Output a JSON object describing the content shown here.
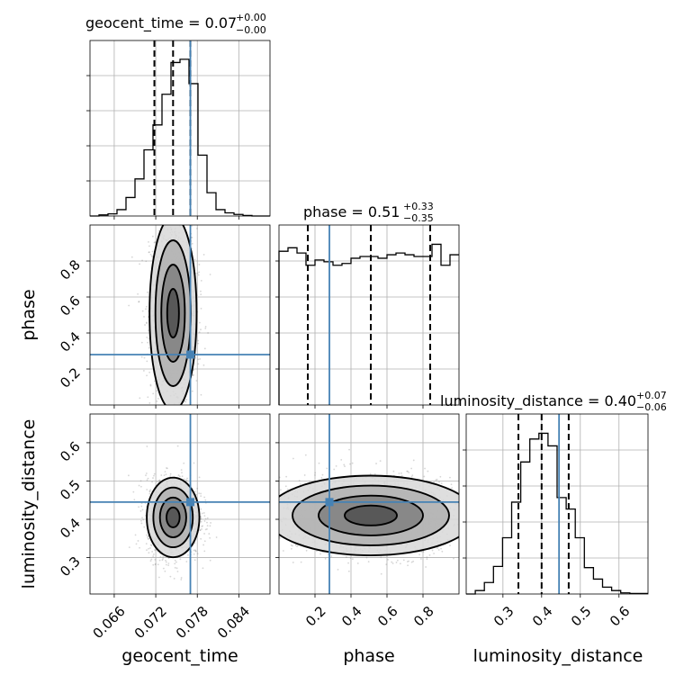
{
  "chart_data": {
    "type": "corner",
    "parameters": [
      "geocent_time",
      "phase",
      "luminosity_distance"
    ],
    "truths": {
      "geocent_time": 0.077,
      "phase": 0.28,
      "luminosity_distance": 0.445
    },
    "grid": true,
    "titles": {
      "geocent_time": {
        "label": "geocent_time = 0.07",
        "upper": "+0.00",
        "lower": "−0.00"
      },
      "phase": {
        "label": "phase = 0.51",
        "upper": "+0.33",
        "lower": "−0.35"
      },
      "luminosity_distance": {
        "label": "luminosity_distance = 0.40",
        "upper": "+0.07",
        "lower": "−0.06"
      }
    },
    "axes": {
      "geocent_time": {
        "label": "geocent_time",
        "range": [
          0.0625,
          0.0885
        ],
        "ticks": [
          0.066,
          0.072,
          0.078,
          0.084
        ],
        "tick_labels": [
          "0.066",
          "0.072",
          "0.078",
          "0.084"
        ]
      },
      "phase": {
        "label": "phase",
        "range": [
          0.0,
          1.0
        ],
        "ticks": [
          0.2,
          0.4,
          0.6,
          0.8
        ],
        "tick_labels": [
          "0.2",
          "0.4",
          "0.6",
          "0.8"
        ]
      },
      "luminosity_distance": {
        "label": "luminosity_distance",
        "range": [
          0.205,
          0.675
        ],
        "ticks": [
          0.3,
          0.4,
          0.5,
          0.6
        ],
        "tick_labels": [
          "0.3",
          "0.4",
          "0.5",
          "0.6"
        ],
        "ticks_2d": [
          0.3,
          0.4,
          0.5,
          0.6
        ]
      }
    },
    "histograms": {
      "geocent_time": {
        "quantiles": [
          0.0718,
          0.0745,
          0.077
        ],
        "bins": [
          0.0625,
          0.0638,
          0.0651,
          0.0664,
          0.0677,
          0.069,
          0.0703,
          0.0716,
          0.0729,
          0.0742,
          0.0755,
          0.0768,
          0.0781,
          0.0794,
          0.0807,
          0.082,
          0.0833,
          0.0846,
          0.0859,
          0.0872,
          0.0885
        ],
        "counts": [
          0,
          2,
          4,
          12,
          35,
          70,
          125,
          172,
          230,
          290,
          296,
          250,
          115,
          44,
          12,
          6,
          3,
          1,
          0,
          0
        ]
      },
      "phase": {
        "quantiles": [
          0.16,
          0.51,
          0.84
        ],
        "bins": [
          0.0,
          0.05,
          0.1,
          0.15,
          0.2,
          0.25,
          0.3,
          0.35,
          0.4,
          0.45,
          0.5,
          0.55,
          0.6,
          0.65,
          0.7,
          0.75,
          0.8,
          0.85,
          0.9,
          0.95,
          1.0
        ],
        "counts": [
          88,
          90,
          87,
          80,
          83,
          82,
          80,
          81,
          84,
          85,
          85,
          84,
          86,
          87,
          86,
          85,
          85,
          92,
          80,
          86
        ]
      },
      "luminosity_distance": {
        "quantiles": [
          0.34,
          0.4,
          0.47
        ],
        "bins": [
          0.205,
          0.2285,
          0.252,
          0.2755,
          0.299,
          0.3225,
          0.346,
          0.3695,
          0.393,
          0.4165,
          0.44,
          0.4635,
          0.487,
          0.5105,
          0.534,
          0.5575,
          0.581,
          0.6045,
          0.628,
          0.6515,
          0.675
        ],
        "counts": [
          0,
          6,
          20,
          48,
          98,
          160,
          230,
          270,
          280,
          258,
          168,
          148,
          98,
          46,
          26,
          12,
          6,
          2,
          1,
          1
        ]
      }
    },
    "contour_levels_sigma": [
      0.5,
      1.0,
      1.5,
      2.0
    ],
    "samples_2d": {
      "geocent_time_phase": {
        "x_mean": 0.0745,
        "x_sd": 0.0017,
        "y_mean": 0.51,
        "y_sd": 0.27
      },
      "geocent_time_luminosity_distance": {
        "x_mean": 0.0745,
        "x_sd": 0.0019,
        "y_mean": 0.405,
        "y_sd": 0.052
      },
      "phase_luminosity_distance": {
        "x_mean": 0.51,
        "x_sd": 0.29,
        "y_mean": 0.41,
        "y_sd": 0.052
      }
    }
  }
}
